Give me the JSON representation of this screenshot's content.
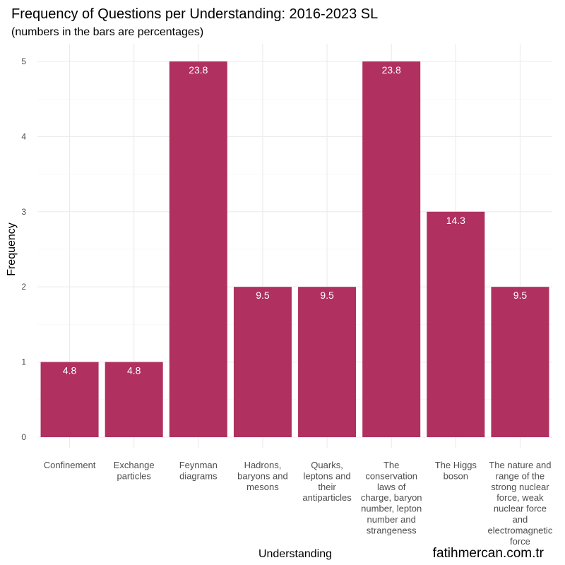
{
  "colors": {
    "bar": "#B03060",
    "grid_major": "#ebebeb",
    "grid_minor": "#f3f3f3",
    "bar_text": "#ffffff"
  },
  "credit": "fatihmercan.com.tr",
  "chart_data": {
    "type": "bar",
    "title": "Frequency of Questions per Understanding: 2016-2023 SL",
    "subtitle": "(numbers in the bars are percentages)",
    "xlabel": "Understanding",
    "ylabel": "Frequency",
    "ylim": [
      0,
      5
    ],
    "yticks": [
      0,
      1,
      2,
      3,
      4,
      5
    ],
    "grid": true,
    "categories": [
      "Confinement",
      "Exchange particles",
      "Feynman diagrams",
      "Hadrons, baryons and mesons",
      "Quarks, leptons and their antiparticles",
      "The conservation laws of charge, baryon number, lepton number and strangeness",
      "The Higgs boson",
      "The nature and range of the strong nuclear force, weak nuclear force and electromagnetic force"
    ],
    "category_lines": [
      [
        "Confinement"
      ],
      [
        "Exchange",
        "particles"
      ],
      [
        "Feynman",
        "diagrams"
      ],
      [
        "Hadrons,",
        "baryons and",
        "mesons"
      ],
      [
        "Quarks,",
        "leptons and",
        "their",
        "antiparticles"
      ],
      [
        "The",
        "conservation",
        "laws of",
        "charge, baryon",
        "number, lepton",
        "number and",
        "strangeness"
      ],
      [
        "The Higgs",
        "boson"
      ],
      [
        "The nature and",
        "range of the",
        "strong nuclear",
        "force, weak",
        "nuclear force",
        "and",
        "electromagnetic",
        "force"
      ]
    ],
    "values": [
      1,
      1,
      5,
      2,
      2,
      5,
      3,
      2
    ],
    "percent_labels": [
      "4.8",
      "4.8",
      "23.8",
      "9.5",
      "9.5",
      "23.8",
      "14.3",
      "9.5"
    ]
  }
}
